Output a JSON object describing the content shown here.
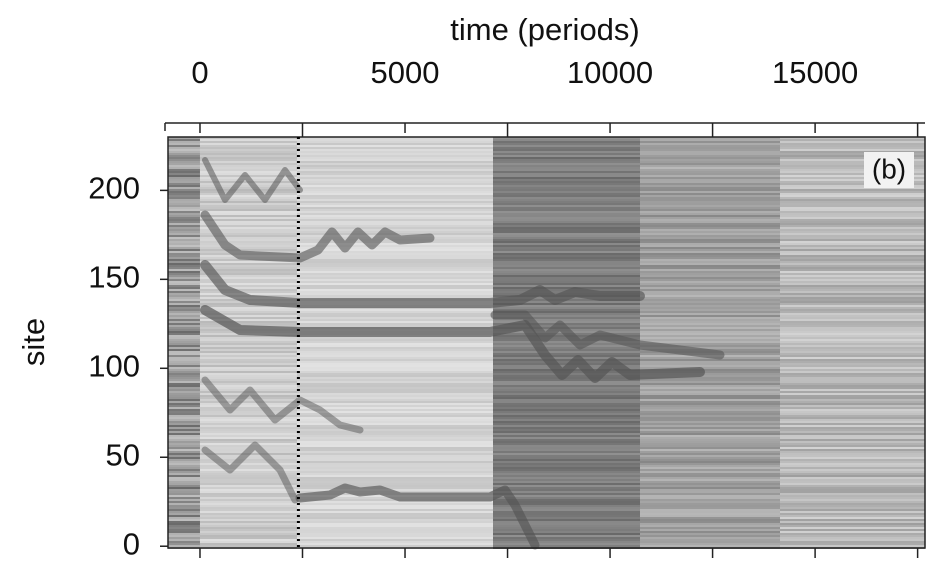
{
  "chart_data": {
    "type": "heatmap-image",
    "xlabel": "time (periods)",
    "ylabel": "site",
    "annotation": "(b)",
    "xlim": [
      -780,
      17680
    ],
    "xticks": [
      0,
      5000,
      10000,
      15000
    ],
    "xminorticks": [
      2500,
      7500,
      12500,
      17500
    ],
    "ylim": [
      -1,
      230
    ],
    "yticks": [
      0,
      50,
      100,
      150,
      200
    ],
    "marker_x": 2400
  }
}
